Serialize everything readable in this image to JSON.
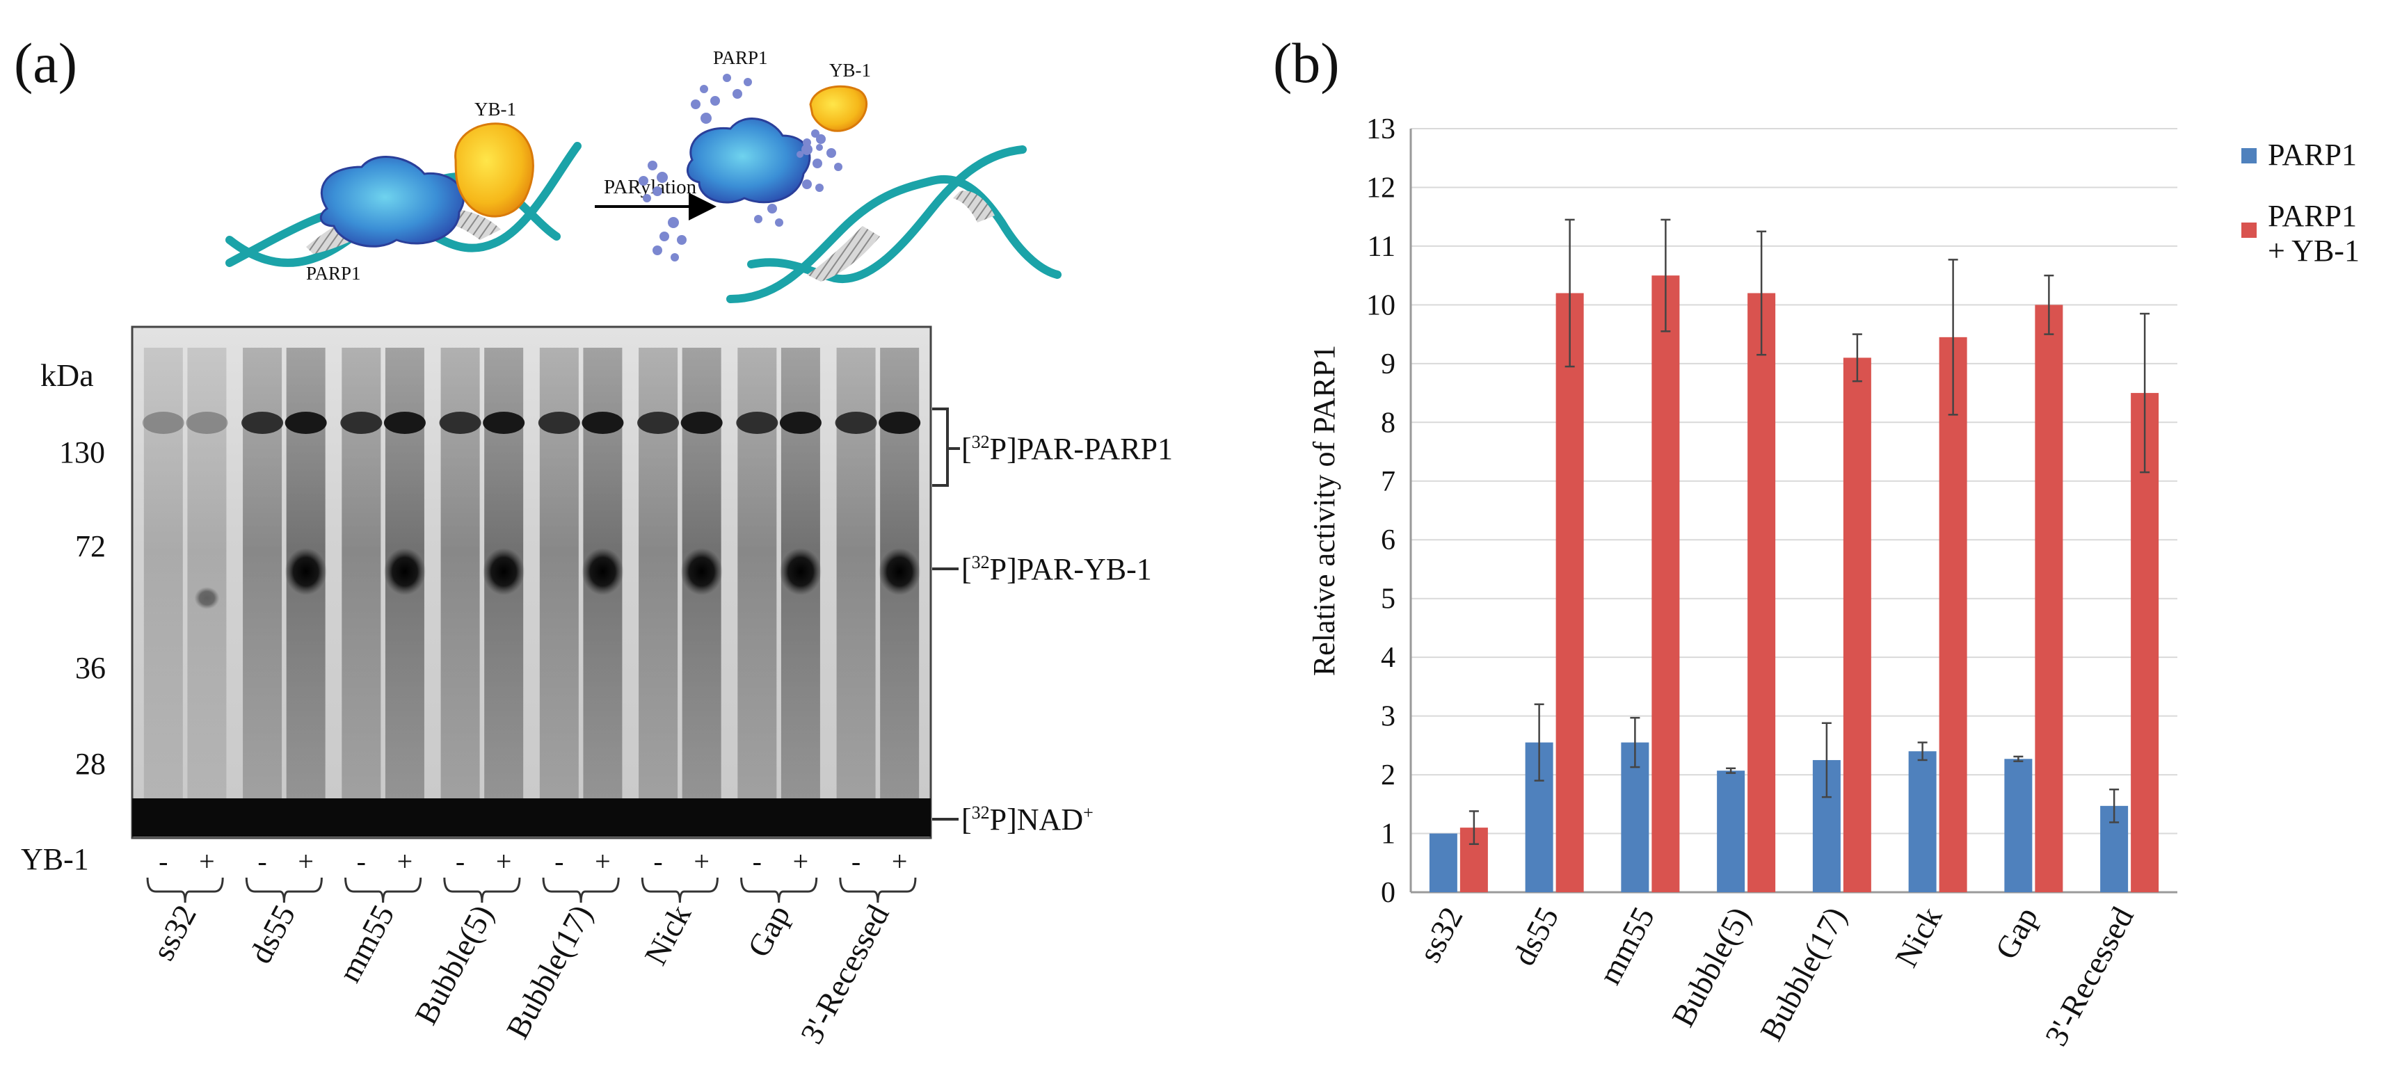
{
  "panel_a": {
    "label": "(a)",
    "schematic": {
      "protein_left": "PARP1",
      "protein_right": "YB-1",
      "arrow_label": "PARylation",
      "product_protein_1": "PARP1",
      "product_protein_2": "YB-1"
    },
    "gel": {
      "unit_label": "kDa",
      "markers": [
        "130",
        "72",
        "36",
        "28"
      ],
      "band_labels": [
        "[32P]PAR-PARP1",
        "[32P]PAR-YB-1",
        "[32P]NAD+"
      ],
      "row_label": "YB-1",
      "lane_signs": [
        "-",
        "+"
      ],
      "sample_labels": [
        "ss32",
        "ds55",
        "mm55",
        "Bubble(5)",
        "Bubble(17)",
        "Nick",
        "Gap",
        "3'-Recessed"
      ]
    }
  },
  "panel_b": {
    "label": "(b)"
  },
  "chart_data": {
    "type": "bar",
    "title": "",
    "xlabel": "",
    "ylabel": "Relative activity of PARP1",
    "categories": [
      "ss32",
      "ds55",
      "mm55",
      "Bubble(5)",
      "Bubble(17)",
      "Nick",
      "Gap",
      "3'-Recessed"
    ],
    "series": [
      {
        "name": "PARP1",
        "color": "#4f81bd",
        "values": [
          1.0,
          2.55,
          2.55,
          2.07,
          2.25,
          2.4,
          2.27,
          1.47
        ],
        "errors": [
          0.0,
          0.65,
          0.42,
          0.04,
          0.63,
          0.15,
          0.04,
          0.28
        ]
      },
      {
        "name": "PARP1 + YB-1",
        "color": "#d9534f",
        "values": [
          1.1,
          10.2,
          10.5,
          10.2,
          9.1,
          9.45,
          10.0,
          8.5
        ],
        "errors": [
          0.28,
          1.25,
          0.95,
          1.05,
          0.4,
          1.32,
          0.5,
          1.35
        ]
      }
    ],
    "ylim": [
      0,
      13
    ],
    "yticks": [
      "0",
      "1",
      "2",
      "3",
      "4",
      "5",
      "6",
      "7",
      "8",
      "9",
      "10",
      "11",
      "12",
      "13"
    ],
    "grid": true,
    "legend": "top-right"
  }
}
